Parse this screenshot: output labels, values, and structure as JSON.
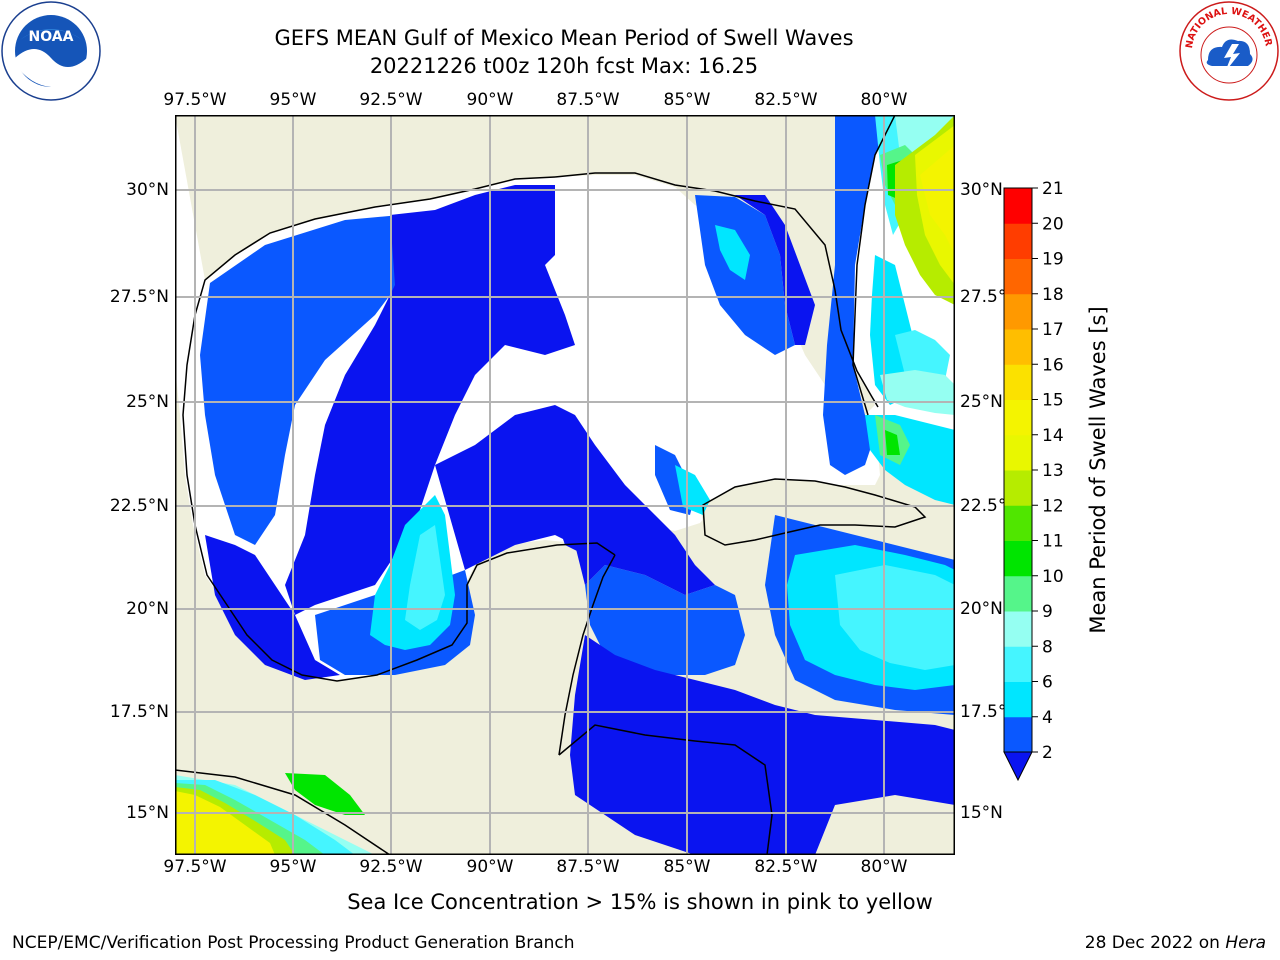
{
  "title": {
    "line1": "GEFS MEAN Gulf of Mexico Mean Period of Swell Waves",
    "line2": "20221226 t00z 120h fcst   Max: 16.25"
  },
  "map": {
    "lon_labels": [
      "97.5°W",
      "95°W",
      "92.5°W",
      "90°W",
      "87.5°W",
      "85°W",
      "82.5°W",
      "80°W"
    ],
    "lat_labels": [
      "30°N",
      "27.5°N",
      "25°N",
      "22.5°N",
      "20°N",
      "17.5°N",
      "15°N"
    ],
    "colors": {
      "land": "#efefdc",
      "grid": "#b4b4b4",
      "coast": "#000000"
    }
  },
  "colorbar": {
    "label": "Mean Period of Swell Waves [s]",
    "ticks": [
      "2",
      "4",
      "6",
      "8",
      "9",
      "10",
      "11",
      "12",
      "13",
      "14",
      "15",
      "16",
      "17",
      "18",
      "19",
      "20",
      "21"
    ],
    "colors": [
      "#0a58ff",
      "#00e6ff",
      "#45f5ff",
      "#95fff2",
      "#55f58a",
      "#00e500",
      "#50e600",
      "#b6ec00",
      "#e9f700",
      "#f4f400",
      "#fbe100",
      "#ffbe00",
      "#ff9900",
      "#ff6600",
      "#ff3d00",
      "#ff0000"
    ],
    "underflow_color": "#0a14f0"
  },
  "footnote": "Sea Ice Concentration > 15% is shown in pink to yellow",
  "credit": "NCEP/EMC/Verification Post Processing Product Generation Branch",
  "datestamp": {
    "date": "28 Dec 2022 on",
    "host": "Hera"
  },
  "logos": {
    "left": "NOAA",
    "right": "NATIONAL WEATHER SERVICE"
  }
}
